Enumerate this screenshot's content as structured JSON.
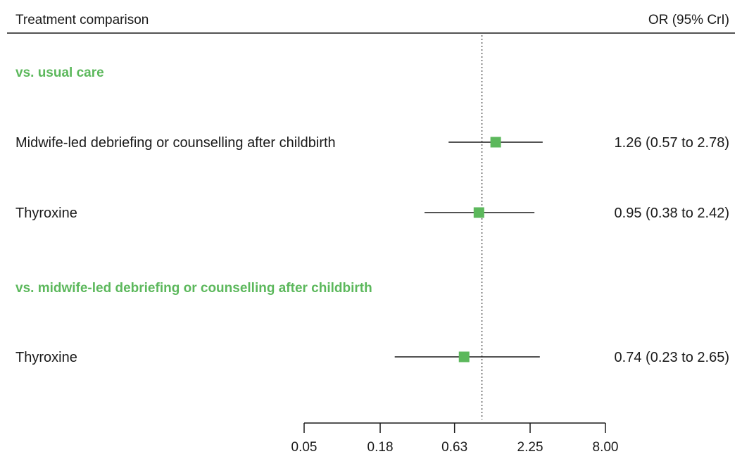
{
  "header": {
    "left": "Treatment comparison",
    "right": "OR (95% CrI)"
  },
  "colors": {
    "group": "#5cb85c",
    "marker": "#5cb85c",
    "line": "#1a1a1a",
    "reference": "#333333"
  },
  "chart_data": {
    "type": "forest",
    "scale": "log",
    "reference_value": 1,
    "xlim": [
      0.05,
      8.0
    ],
    "ticks": [
      {
        "value": 0.05,
        "label": "0.05"
      },
      {
        "value": 0.18,
        "label": "0.18"
      },
      {
        "value": 0.63,
        "label": "0.63"
      },
      {
        "value": 2.25,
        "label": "2.25"
      },
      {
        "value": 8.0,
        "label": "8.00"
      }
    ],
    "rows": [
      {
        "kind": "group",
        "label": "vs. usual care"
      },
      {
        "kind": "estimate",
        "label": "Midwife-led debriefing or counselling after childbirth",
        "or": 1.26,
        "lower": 0.57,
        "upper": 2.78,
        "text": "1.26 (0.57 to 2.78)"
      },
      {
        "kind": "estimate",
        "label": "Thyroxine",
        "or": 0.95,
        "lower": 0.38,
        "upper": 2.42,
        "text": "0.95 (0.38 to 2.42)"
      },
      {
        "kind": "group",
        "label": "vs. midwife-led debriefing or counselling after childbirth"
      },
      {
        "kind": "estimate",
        "label": "Thyroxine",
        "or": 0.74,
        "lower": 0.23,
        "upper": 2.65,
        "text": "0.74 (0.23 to 2.65)"
      }
    ]
  }
}
